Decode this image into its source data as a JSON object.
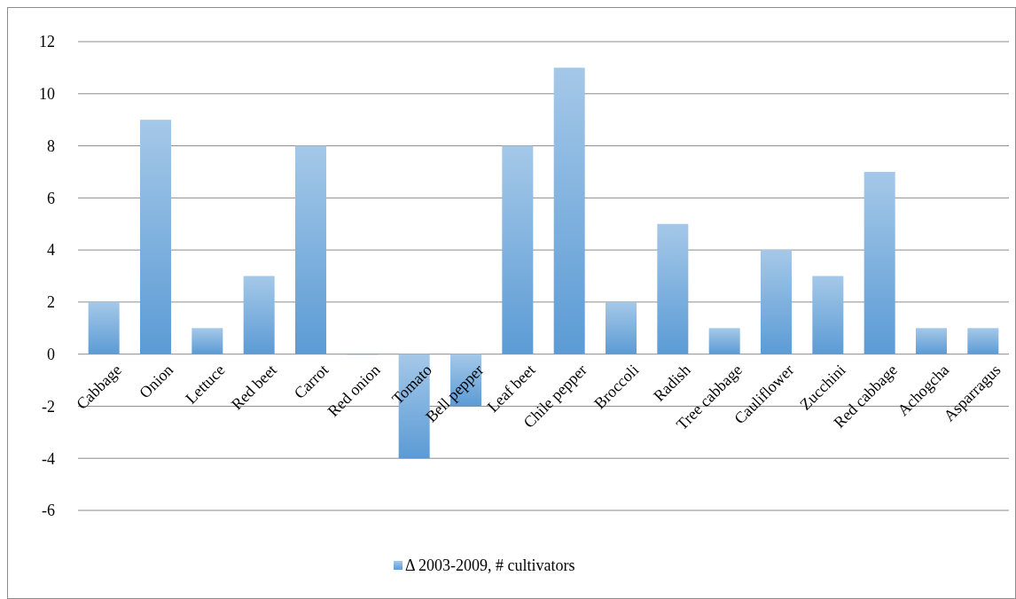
{
  "chart_data": {
    "type": "bar",
    "categories": [
      "Cabbage",
      "Onion",
      "Lettuce",
      "Red beet",
      "Carrot",
      "Red onion",
      "Tomato",
      "Bell pepper",
      "Leaf beet",
      "Chile pepper",
      "Broccoli",
      "Radish",
      "Tree cabbage",
      "Cauliflower",
      "Zucchini",
      "Red cabbage",
      "Achogcha",
      "Asparragus"
    ],
    "series": [
      {
        "name": "Δ 2003-2009, # cultivators",
        "color": "#5b9bd5",
        "values": [
          2,
          9,
          1,
          3,
          8,
          0,
          -4,
          -2,
          8,
          11,
          2,
          5,
          1,
          4,
          3,
          7,
          1,
          1
        ]
      }
    ],
    "ylim": [
      -6,
      12
    ],
    "yticks": [
      -6,
      -4,
      -2,
      0,
      2,
      4,
      6,
      8,
      10,
      12
    ],
    "grid": "y",
    "legend": "bottom"
  }
}
